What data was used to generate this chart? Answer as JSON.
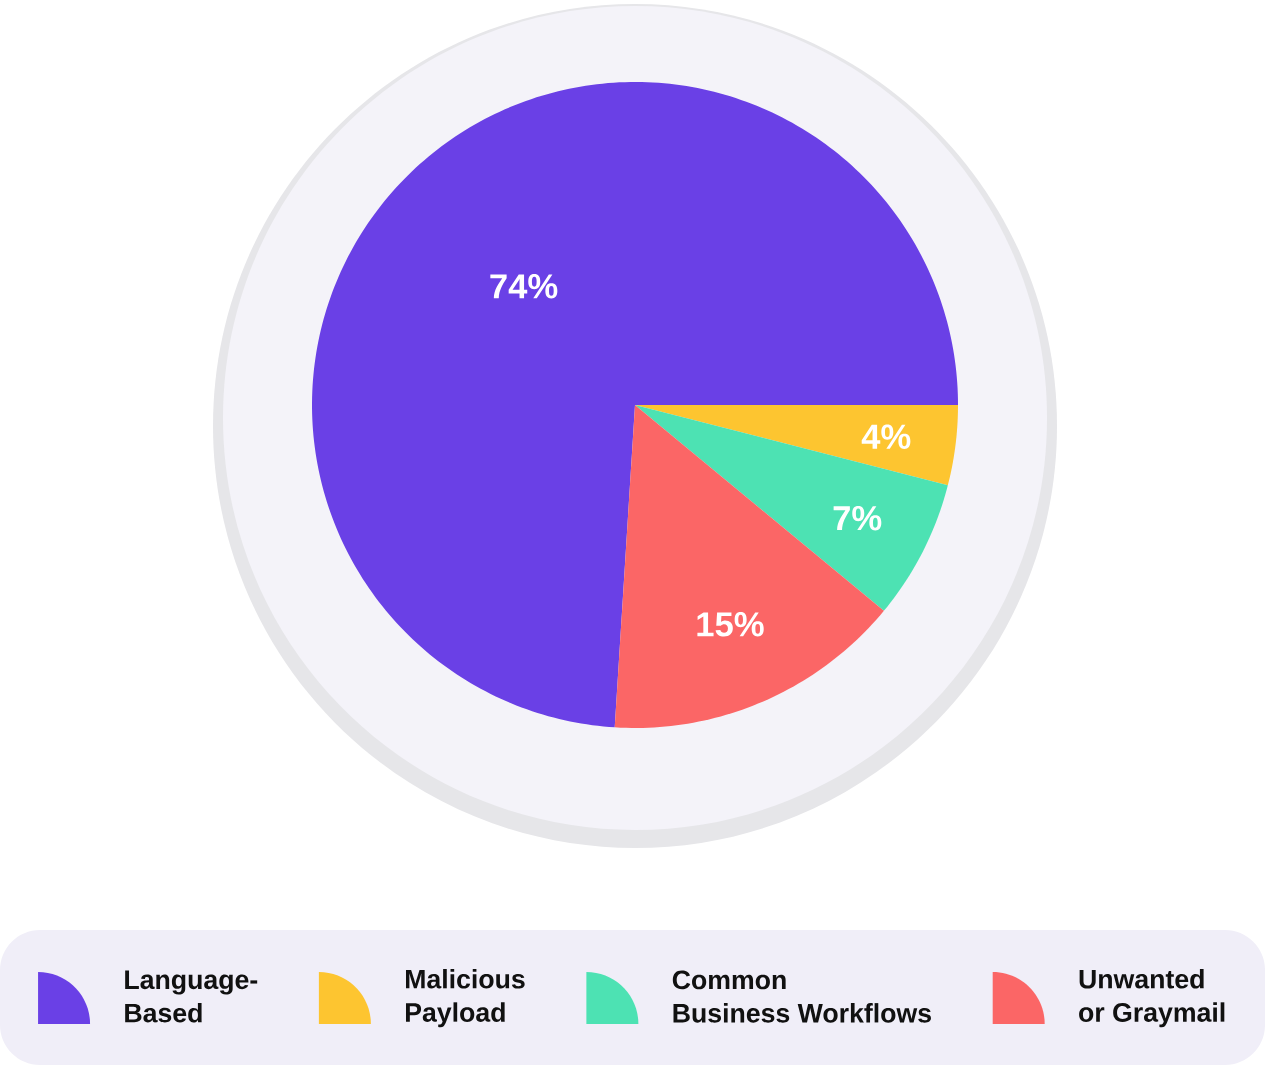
{
  "chart_data": {
    "type": "pie",
    "categories": [
      "Language-Based",
      "Malicious Payload",
      "Common Business Workflows",
      "Unwanted or Graymail"
    ],
    "values": [
      74,
      4,
      7,
      15
    ],
    "colors": [
      "#6a40e6",
      "#fdc530",
      "#4de2b3",
      "#fb6666"
    ],
    "value_labels": [
      "74%",
      "4%",
      "7%",
      "15%"
    ],
    "legend": "bottom"
  }
}
